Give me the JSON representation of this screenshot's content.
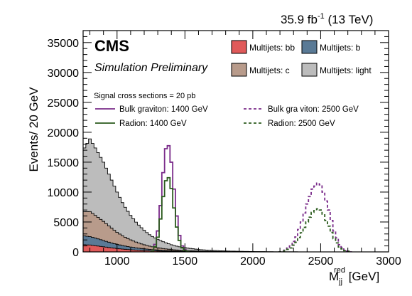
{
  "header": {
    "lumi": "35.9 fb",
    "lumi_exp": "-1",
    "energy": "(13 TeV)"
  },
  "labels": {
    "cms": "CMS",
    "prelim": "Simulation Preliminary",
    "xsec_note": "Signal cross sections = 20 pb"
  },
  "colors": {
    "bb": "#e05a5a",
    "b": "#5a7a96",
    "c": "#b89b8b",
    "light": "#bcbcbc",
    "graviton": "#7a2b8a",
    "radion": "#2a5a1c"
  },
  "legend": {
    "bb": "Multijets: bb",
    "b": "Multijets: b",
    "c": "Multijets: c",
    "light": "Multijets: light",
    "grav1400": "Bulk graviton: 1400 GeV",
    "grav2500": "Bulk gra viton: 2500 GeV",
    "rad1400": "Radion: 1400 GeV",
    "rad2500": "Radion: 2500 GeV"
  },
  "chart_data": {
    "type": "area",
    "xlabel": "M",
    "xlabel_sub": "jj",
    "xlabel_sup": "red",
    "xlabel_unit": "[GeV]",
    "ylabel": "Events/ 20 GeV",
    "xlim": [
      750,
      3000
    ],
    "ylim": [
      0,
      37000
    ],
    "xticks": [
      1000,
      1500,
      2000,
      2500,
      3000
    ],
    "yticks": [
      0,
      5000,
      10000,
      15000,
      20000,
      25000,
      30000,
      35000
    ],
    "stack_order": [
      "bb",
      "b",
      "c",
      "light"
    ],
    "background": [
      {
        "name": "Multijets: bb",
        "x": [
          750,
          800,
          850,
          900,
          950,
          1000,
          1050,
          1100,
          1150,
          1200,
          1250,
          1300,
          1350,
          1400,
          1450,
          1500,
          1600,
          1700,
          1800,
          1900,
          2000,
          2200,
          2500,
          3000
        ],
        "values": [
          1200,
          1150,
          1000,
          850,
          700,
          560,
          450,
          360,
          290,
          230,
          180,
          140,
          110,
          85,
          65,
          50,
          30,
          18,
          10,
          6,
          3,
          1,
          0,
          0
        ]
      },
      {
        "name": "Multijets: b",
        "x": [
          750,
          800,
          850,
          900,
          950,
          1000,
          1050,
          1100,
          1150,
          1200,
          1250,
          1300,
          1350,
          1400,
          1450,
          1500,
          1600,
          1700,
          1800,
          1900,
          2000,
          2200,
          2500,
          3000
        ],
        "values": [
          1500,
          1400,
          1250,
          1050,
          850,
          700,
          560,
          450,
          360,
          280,
          220,
          170,
          135,
          100,
          80,
          60,
          40,
          25,
          15,
          9,
          5,
          2,
          0,
          0
        ]
      },
      {
        "name": "Multijets: c",
        "x": [
          750,
          800,
          850,
          900,
          950,
          1000,
          1050,
          1100,
          1150,
          1200,
          1250,
          1300,
          1350,
          1400,
          1450,
          1500,
          1600,
          1700,
          1800,
          1900,
          2000,
          2200,
          2500,
          3000
        ],
        "values": [
          4000,
          4200,
          3700,
          3200,
          2600,
          2000,
          1550,
          1200,
          900,
          680,
          500,
          380,
          280,
          210,
          150,
          110,
          65,
          40,
          24,
          14,
          8,
          3,
          1,
          0
        ]
      },
      {
        "name": "Multijets: light",
        "x": [
          750,
          800,
          850,
          900,
          950,
          1000,
          1050,
          1100,
          1150,
          1200,
          1250,
          1300,
          1350,
          1400,
          1450,
          1500,
          1600,
          1700,
          1800,
          1900,
          2000,
          2200,
          2500,
          3000
        ],
        "values": [
          10300,
          12150,
          11050,
          9900,
          8350,
          6740,
          5240,
          4090,
          3150,
          2410,
          1800,
          1410,
          1075,
          805,
          605,
          480,
          265,
          167,
          101,
          71,
          44,
          14,
          3,
          0
        ]
      }
    ],
    "signals": [
      {
        "name": "Bulk graviton: 1400 GeV",
        "x": [
          1250,
          1270,
          1290,
          1310,
          1330,
          1350,
          1370,
          1390,
          1410,
          1430,
          1450,
          1470,
          1490,
          1510,
          1530
        ],
        "values": [
          0,
          500,
          2000,
          5000,
          10500,
          16000,
          18500,
          17000,
          13000,
          8000,
          4000,
          1500,
          500,
          150,
          0
        ]
      },
      {
        "name": "Radion: 1400 GeV",
        "x": [
          1250,
          1270,
          1290,
          1310,
          1330,
          1350,
          1370,
          1390,
          1410,
          1430,
          1450,
          1470,
          1490,
          1510,
          1530
        ],
        "values": [
          0,
          350,
          1400,
          3500,
          7500,
          11000,
          12800,
          12000,
          9200,
          5500,
          2800,
          1000,
          350,
          100,
          0
        ]
      },
      {
        "name": "Bulk graviton: 2500 GeV",
        "x": [
          2200,
          2240,
          2280,
          2320,
          2360,
          2400,
          2440,
          2480,
          2500,
          2520,
          2560,
          2600,
          2640,
          2680,
          2720
        ],
        "values": [
          0,
          300,
          1000,
          2500,
          5000,
          8000,
          10500,
          11500,
          11200,
          10000,
          7000,
          3500,
          1200,
          300,
          0
        ]
      },
      {
        "name": "Radion: 2500 GeV",
        "x": [
          2200,
          2240,
          2280,
          2320,
          2360,
          2400,
          2440,
          2480,
          2500,
          2520,
          2560,
          2600,
          2640,
          2680,
          2720
        ],
        "values": [
          0,
          200,
          650,
          1600,
          3200,
          5000,
          6600,
          7200,
          7000,
          6200,
          4300,
          2200,
          800,
          200,
          0
        ]
      }
    ]
  }
}
